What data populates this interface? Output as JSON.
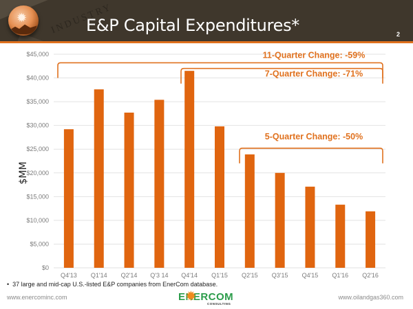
{
  "slide": {
    "title": "E&P Capital Expenditures*",
    "page_number": "2",
    "header_decor_text": "INDUSTRY",
    "footnote": "37 large and mid-cap U.S.-listed E&P companies from EnerCom database.",
    "footer_left": "www.enercominc.com",
    "footer_right": "www.oilandgas360.com",
    "logo": {
      "word": "ENERCOM",
      "registered": "®",
      "sub": "CONSULTING"
    },
    "colors": {
      "header_bg": "#3f372c",
      "accent": "#e0711e",
      "bar": "#e0650f",
      "logo_green": "#2b9c4a"
    }
  },
  "chart_data": {
    "type": "bar",
    "title": "E&P Capital Expenditures*",
    "xlabel": "",
    "ylabel": "$MM",
    "categories": [
      "Q4'13",
      "Q1'14",
      "Q2'14",
      "Q'3 14",
      "Q4'14",
      "Q1'15",
      "Q2'15",
      "Q3'15",
      "Q4'15",
      "Q1'16",
      "Q2'16"
    ],
    "values": [
      29200,
      37600,
      32700,
      35400,
      41500,
      29800,
      23900,
      20000,
      17100,
      13300,
      11900
    ],
    "ylim": [
      0,
      45000
    ],
    "yticks": [
      0,
      5000,
      10000,
      15000,
      20000,
      25000,
      30000,
      35000,
      40000,
      45000
    ],
    "ytick_labels": [
      "$0",
      "$5,000",
      "$10,000",
      "$15,000",
      "$20,000",
      "$25,000",
      "$30,000",
      "$35,000",
      "$40,000",
      "$45,000"
    ],
    "grid": true,
    "legend": "none",
    "annotations": [
      {
        "label": "11-Quarter Change: -59%",
        "from_category": 0,
        "to_category": 10,
        "bracket_level": 43200
      },
      {
        "label": "7-Quarter Change: -71%",
        "from_category": 4,
        "to_category": 10,
        "bracket_level": 42000
      },
      {
        "label": "5-Quarter Change: -50%",
        "from_category": 6,
        "to_category": 10,
        "bracket_level": 25200
      }
    ]
  }
}
